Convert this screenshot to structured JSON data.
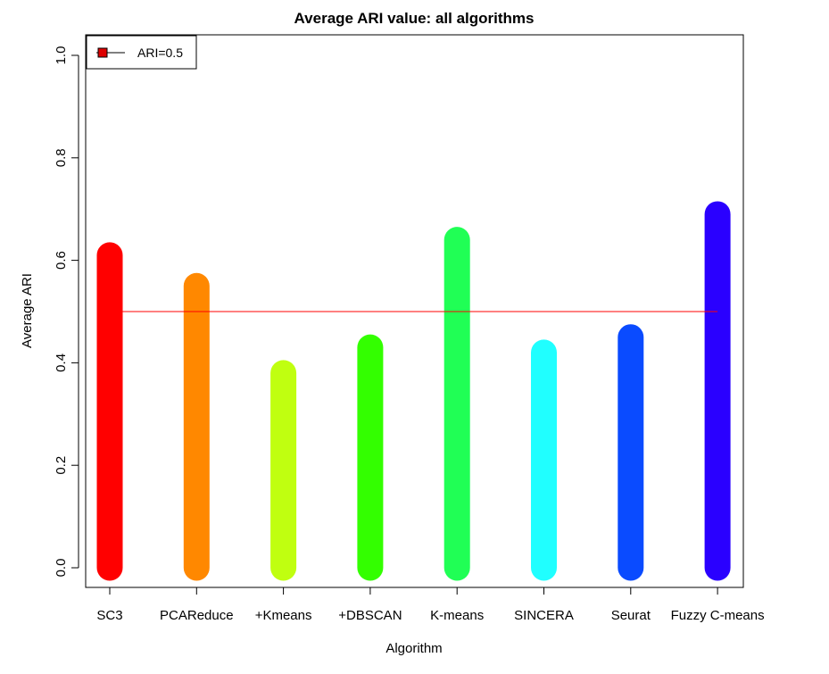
{
  "chart_data": {
    "type": "bar",
    "title": "Average ARI value: all algorithms",
    "xlabel": "Algorithm",
    "ylabel": "Average ARI",
    "ylim": [
      0,
      1
    ],
    "yticks": [
      "0.0",
      "0.2",
      "0.4",
      "0.6",
      "0.8",
      "1.0"
    ],
    "categories": [
      "SC3",
      "PCAReduce",
      "+Kmeans",
      "+DBSCAN",
      "K-means",
      "SINCERA",
      "Seurat",
      "Fuzzy C-means"
    ],
    "values": [
      0.61,
      0.55,
      0.38,
      0.43,
      0.64,
      0.42,
      0.45,
      0.69
    ],
    "colors": [
      "#ff0000",
      "#ff8800",
      "#c0ff10",
      "#33ff00",
      "#20ff55",
      "#20ffff",
      "#0a4bff",
      "#2a00ff"
    ],
    "reference_line": {
      "value": 0.5,
      "color": "#ff0000"
    },
    "legend": {
      "label": "ARI=0.5",
      "position": "top-left",
      "color": "#dd0000"
    },
    "grid": false
  }
}
